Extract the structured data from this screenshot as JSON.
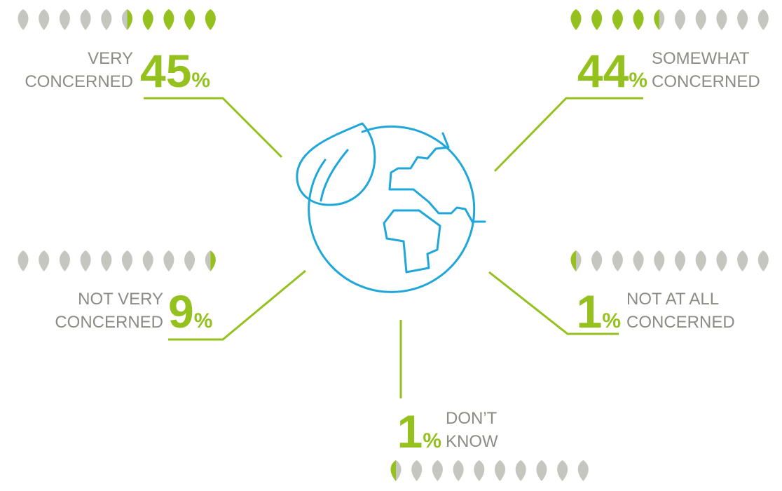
{
  "colors": {
    "green": "#95c11f",
    "gray": "#c6c6c0",
    "text": "#8c8c86",
    "line": "#95c11f",
    "globe": "#1ea7d8"
  },
  "icons": {
    "globe": "globe-icon",
    "leaf": "leaf-icon"
  },
  "chart_data": {
    "type": "pictograph",
    "unit_icons": 10,
    "percent_sign": "%",
    "categories": [
      {
        "key": "very",
        "label_lines": [
          "VERY",
          "CONCERNED"
        ],
        "value": 45
      },
      {
        "key": "somewhat",
        "label_lines": [
          "SOMEWHAT",
          "CONCERNED"
        ],
        "value": 44
      },
      {
        "key": "not-very",
        "label_lines": [
          "NOT VERY",
          "CONCERNED"
        ],
        "value": 9
      },
      {
        "key": "not-at-all",
        "label_lines": [
          "NOT AT ALL",
          "CONCERNED"
        ],
        "value": 1
      },
      {
        "key": "dont-know",
        "label_lines": [
          "DON’T",
          "KNOW"
        ],
        "value": 1
      }
    ]
  }
}
